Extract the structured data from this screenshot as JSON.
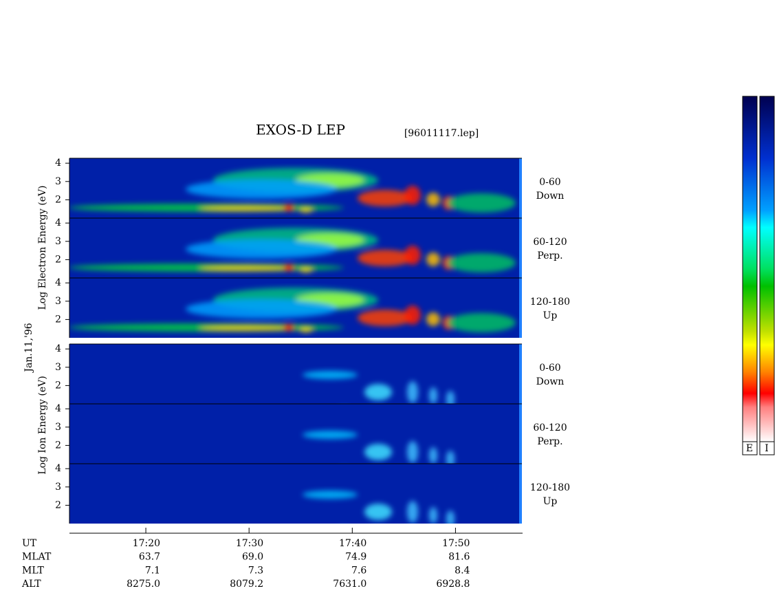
{
  "title": "EXOS-D LEP",
  "file": "[96011117.lep]",
  "date": "Jan.11,'96",
  "chart_data": [
    {
      "type": "spectrogram",
      "ylabel": "Log  Electron  Energy (eV)",
      "angle": "0-60",
      "direction": "Down",
      "ylim": [
        1,
        4.27
      ],
      "yticks": [
        2,
        3,
        4
      ]
    },
    {
      "type": "spectrogram",
      "angle": "60-120",
      "direction": "Perp.",
      "ylim": [
        1,
        4.27
      ],
      "yticks": [
        2,
        3,
        4
      ]
    },
    {
      "type": "spectrogram",
      "angle": "120-180",
      "direction": "Up",
      "ylim": [
        1,
        4.27
      ],
      "yticks": [
        2,
        3,
        4
      ]
    },
    {
      "type": "spectrogram",
      "ylabel": "Log  Ion  Energy (eV)",
      "angle": "0-60",
      "direction": "Down",
      "ylim": [
        1,
        4.27
      ],
      "yticks": [
        2,
        3,
        4
      ]
    },
    {
      "type": "spectrogram",
      "angle": "60-120",
      "direction": "Perp.",
      "ylim": [
        1,
        4.27
      ],
      "yticks": [
        2,
        3,
        4
      ]
    },
    {
      "type": "spectrogram",
      "angle": "120-180",
      "direction": "Up",
      "ylim": [
        1,
        4.27
      ],
      "yticks": [
        2,
        3,
        4
      ]
    }
  ],
  "time_axis": {
    "xlim": [
      12.6,
      56.5
    ],
    "xticks": [
      {
        "value": 20,
        "label": "17:20"
      },
      {
        "value": 30,
        "label": "17:30"
      },
      {
        "value": 40,
        "label": "17:40"
      },
      {
        "value": 50,
        "label": "17:50"
      }
    ]
  },
  "ephemeris": [
    {
      "label": "UT"
    },
    {
      "label": "MLAT",
      "values": [
        "63.7",
        "69.0",
        "74.9",
        "81.6"
      ]
    },
    {
      "label": "MLT",
      "values": [
        "7.1",
        "7.3",
        "7.6",
        "8.4"
      ]
    },
    {
      "label": "ALT",
      "values": [
        "8275.0",
        "8079.2",
        "7631.0",
        "6928.8"
      ]
    }
  ],
  "colorbar": {
    "labels": [
      "E",
      "I"
    ]
  }
}
